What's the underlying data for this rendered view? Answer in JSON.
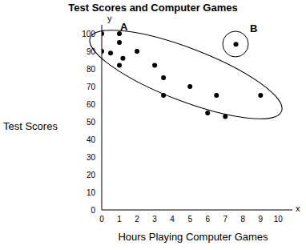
{
  "chart_data": {
    "type": "scatter",
    "title": "Test Scores and Computer Games",
    "x_label": "Hours Playing Computer Games",
    "y_label": "Test Scores",
    "x_axis_symbol": "x",
    "y_axis_symbol": "y",
    "annotations": [
      "A",
      "B"
    ],
    "x": [
      0,
      0,
      0.5,
      1,
      1,
      1,
      1.2,
      2,
      3,
      3.5,
      3.5,
      5,
      6,
      6.5,
      7,
      9,
      7.6
    ],
    "values": [
      100,
      90,
      89,
      100,
      95,
      82,
      86,
      90,
      82,
      75,
      65,
      70,
      55,
      65,
      53,
      65,
      94
    ],
    "color": "#000000",
    "marker": "circle",
    "xlim": [
      0,
      10.8
    ],
    "xticks": [
      0,
      1,
      2,
      3,
      4,
      5,
      6,
      7,
      8,
      9,
      10
    ],
    "ylim": [
      0,
      105
    ],
    "yticks": [
      0,
      10,
      20,
      30,
      40,
      50,
      60,
      70,
      80,
      90,
      100
    ],
    "grid": false
  }
}
